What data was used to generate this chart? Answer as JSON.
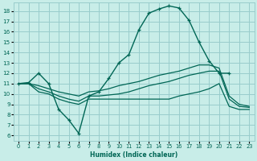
{
  "xlabel": "Humidex (Indice chaleur)",
  "bg_color": "#c8ede8",
  "grid_color": "#99cccc",
  "line_color": "#006655",
  "xlim": [
    -0.5,
    23.5
  ],
  "ylim": [
    5.5,
    18.8
  ],
  "xticks": [
    0,
    1,
    2,
    3,
    4,
    5,
    6,
    7,
    8,
    9,
    10,
    11,
    12,
    13,
    14,
    15,
    16,
    17,
    18,
    19,
    20,
    21,
    22,
    23
  ],
  "yticks": [
    6,
    7,
    8,
    9,
    10,
    11,
    12,
    13,
    14,
    15,
    16,
    17,
    18
  ],
  "curve1_marked": {
    "x": [
      0,
      1,
      2,
      3,
      4,
      5,
      6,
      7,
      8,
      9,
      10,
      11,
      12,
      13,
      14,
      15,
      16,
      17,
      18,
      19,
      20,
      21,
      22,
      23
    ],
    "y": [
      11.0,
      11.1,
      12.0,
      11.0,
      8.5,
      7.5,
      6.2,
      9.8,
      10.2,
      11.5,
      13.0,
      13.8,
      16.2,
      17.8,
      18.2,
      18.5,
      18.3,
      17.1,
      15.0,
      13.2,
      12.0,
      12.0,
      null,
      null
    ]
  },
  "curve2_flat": {
    "x": [
      0,
      1,
      2,
      3,
      4,
      5,
      6,
      7,
      8,
      9,
      10,
      11,
      12,
      13,
      14,
      15,
      16,
      17,
      18,
      19,
      20,
      21,
      22,
      23
    ],
    "y": [
      11.0,
      11.0,
      10.2,
      10.0,
      9.5,
      9.2,
      9.0,
      9.5,
      9.5,
      9.5,
      9.5,
      9.5,
      9.5,
      9.5,
      9.5,
      9.5,
      9.8,
      10.0,
      10.2,
      10.5,
      11.0,
      8.8,
      8.5,
      8.5
    ]
  },
  "curve3_flat": {
    "x": [
      0,
      1,
      2,
      3,
      4,
      5,
      6,
      7,
      8,
      9,
      10,
      11,
      12,
      13,
      14,
      15,
      16,
      17,
      18,
      19,
      20,
      21,
      22,
      23
    ],
    "y": [
      11.0,
      11.0,
      10.5,
      10.2,
      9.8,
      9.5,
      9.3,
      9.8,
      9.8,
      9.9,
      10.0,
      10.2,
      10.5,
      10.8,
      11.0,
      11.2,
      11.5,
      11.8,
      12.0,
      12.2,
      12.2,
      9.5,
      8.8,
      8.7
    ]
  },
  "curve4_flat": {
    "x": [
      0,
      1,
      2,
      3,
      4,
      5,
      6,
      7,
      8,
      9,
      10,
      11,
      12,
      13,
      14,
      15,
      16,
      17,
      18,
      19,
      20,
      21,
      22,
      23
    ],
    "y": [
      11.0,
      11.0,
      10.8,
      10.5,
      10.2,
      10.0,
      9.8,
      10.2,
      10.3,
      10.5,
      10.8,
      11.0,
      11.2,
      11.5,
      11.8,
      12.0,
      12.2,
      12.5,
      12.8,
      12.8,
      12.5,
      9.8,
      9.0,
      8.8
    ]
  }
}
